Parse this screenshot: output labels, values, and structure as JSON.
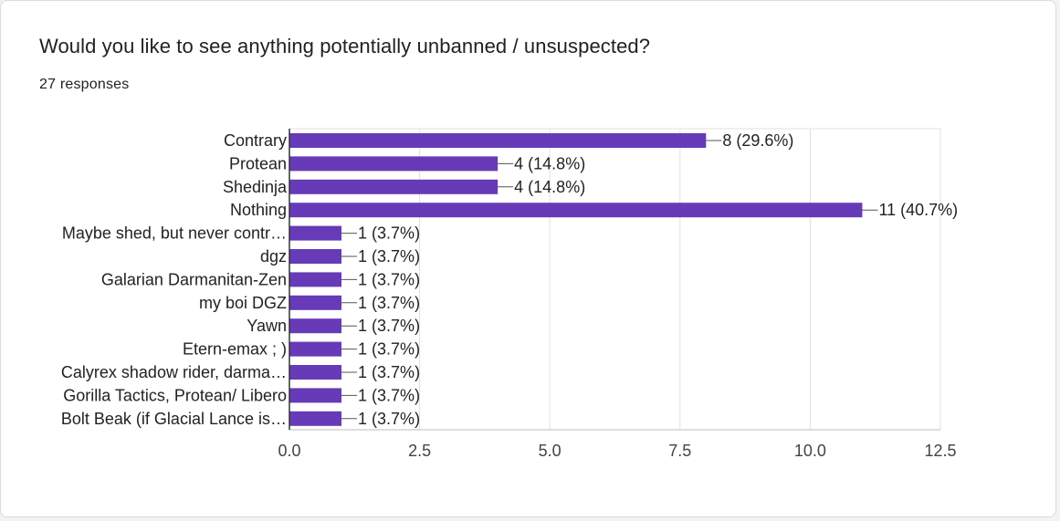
{
  "question": {
    "title": "Would you like to see anything potentially unbanned / unsuspected?",
    "responses": "27 responses"
  },
  "colors": {
    "bar": "#673ab7",
    "grid": "#e0e0e0",
    "axis": "#333333",
    "label": "#222222",
    "tick": "#444444"
  },
  "chart_data": {
    "type": "bar",
    "orientation": "horizontal",
    "categories": [
      "Contrary",
      "Protean",
      "Shedinja",
      "Nothing",
      "Maybe shed, but never contr…",
      "dgz",
      "Galarian Darmanitan-Zen",
      "my boi DGZ",
      "Yawn",
      "Etern-emax ; )",
      "Calyrex shadow rider, darma…",
      "Gorilla Tactics, Protean/ Libero",
      "Bolt Beak (if Glacial Lance is…"
    ],
    "values": [
      8,
      4,
      4,
      11,
      1,
      1,
      1,
      1,
      1,
      1,
      1,
      1,
      1
    ],
    "data_labels": [
      "8 (29.6%)",
      "4 (14.8%)",
      "4 (14.8%)",
      "11 (40.7%)",
      "1 (3.7%)",
      "1 (3.7%)",
      "1 (3.7%)",
      "1 (3.7%)",
      "1 (3.7%)",
      "1 (3.7%)",
      "1 (3.7%)",
      "1 (3.7%)",
      "1 (3.7%)"
    ],
    "xlim": [
      0,
      12.5
    ],
    "xticks": [
      "0.0",
      "2.5",
      "5.0",
      "7.5",
      "10.0",
      "12.5"
    ],
    "xtick_values": [
      0,
      2.5,
      5,
      7.5,
      10,
      12.5
    ],
    "grid": true
  }
}
